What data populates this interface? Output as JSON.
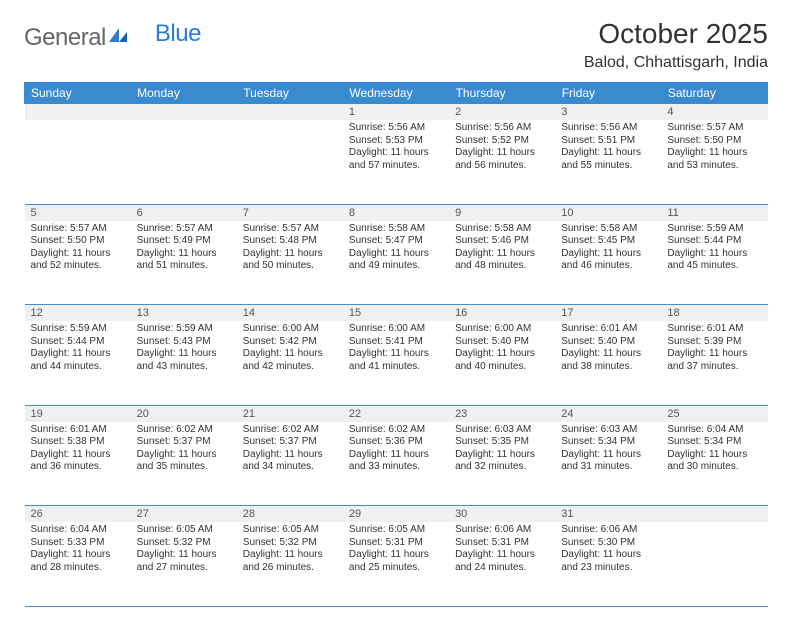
{
  "brand": {
    "name_gray": "General",
    "name_blue": "Blue",
    "logo_color": "#2b7cd3"
  },
  "header": {
    "title": "October 2025",
    "location": "Balod, Chhattisgarh, India"
  },
  "colors": {
    "header_bg": "#3a8ad0",
    "header_text": "#ffffff",
    "daynum_bg": "#eef0f2",
    "rule": "#4a8fc8",
    "text": "#333333"
  },
  "daysOfWeek": [
    "Sunday",
    "Monday",
    "Tuesday",
    "Wednesday",
    "Thursday",
    "Friday",
    "Saturday"
  ],
  "weeks": [
    [
      null,
      null,
      null,
      {
        "n": "1",
        "sr": "Sunrise: 5:56 AM",
        "ss": "Sunset: 5:53 PM",
        "dl": "Daylight: 11 hours and 57 minutes."
      },
      {
        "n": "2",
        "sr": "Sunrise: 5:56 AM",
        "ss": "Sunset: 5:52 PM",
        "dl": "Daylight: 11 hours and 56 minutes."
      },
      {
        "n": "3",
        "sr": "Sunrise: 5:56 AM",
        "ss": "Sunset: 5:51 PM",
        "dl": "Daylight: 11 hours and 55 minutes."
      },
      {
        "n": "4",
        "sr": "Sunrise: 5:57 AM",
        "ss": "Sunset: 5:50 PM",
        "dl": "Daylight: 11 hours and 53 minutes."
      }
    ],
    [
      {
        "n": "5",
        "sr": "Sunrise: 5:57 AM",
        "ss": "Sunset: 5:50 PM",
        "dl": "Daylight: 11 hours and 52 minutes."
      },
      {
        "n": "6",
        "sr": "Sunrise: 5:57 AM",
        "ss": "Sunset: 5:49 PM",
        "dl": "Daylight: 11 hours and 51 minutes."
      },
      {
        "n": "7",
        "sr": "Sunrise: 5:57 AM",
        "ss": "Sunset: 5:48 PM",
        "dl": "Daylight: 11 hours and 50 minutes."
      },
      {
        "n": "8",
        "sr": "Sunrise: 5:58 AM",
        "ss": "Sunset: 5:47 PM",
        "dl": "Daylight: 11 hours and 49 minutes."
      },
      {
        "n": "9",
        "sr": "Sunrise: 5:58 AM",
        "ss": "Sunset: 5:46 PM",
        "dl": "Daylight: 11 hours and 48 minutes."
      },
      {
        "n": "10",
        "sr": "Sunrise: 5:58 AM",
        "ss": "Sunset: 5:45 PM",
        "dl": "Daylight: 11 hours and 46 minutes."
      },
      {
        "n": "11",
        "sr": "Sunrise: 5:59 AM",
        "ss": "Sunset: 5:44 PM",
        "dl": "Daylight: 11 hours and 45 minutes."
      }
    ],
    [
      {
        "n": "12",
        "sr": "Sunrise: 5:59 AM",
        "ss": "Sunset: 5:44 PM",
        "dl": "Daylight: 11 hours and 44 minutes."
      },
      {
        "n": "13",
        "sr": "Sunrise: 5:59 AM",
        "ss": "Sunset: 5:43 PM",
        "dl": "Daylight: 11 hours and 43 minutes."
      },
      {
        "n": "14",
        "sr": "Sunrise: 6:00 AM",
        "ss": "Sunset: 5:42 PM",
        "dl": "Daylight: 11 hours and 42 minutes."
      },
      {
        "n": "15",
        "sr": "Sunrise: 6:00 AM",
        "ss": "Sunset: 5:41 PM",
        "dl": "Daylight: 11 hours and 41 minutes."
      },
      {
        "n": "16",
        "sr": "Sunrise: 6:00 AM",
        "ss": "Sunset: 5:40 PM",
        "dl": "Daylight: 11 hours and 40 minutes."
      },
      {
        "n": "17",
        "sr": "Sunrise: 6:01 AM",
        "ss": "Sunset: 5:40 PM",
        "dl": "Daylight: 11 hours and 38 minutes."
      },
      {
        "n": "18",
        "sr": "Sunrise: 6:01 AM",
        "ss": "Sunset: 5:39 PM",
        "dl": "Daylight: 11 hours and 37 minutes."
      }
    ],
    [
      {
        "n": "19",
        "sr": "Sunrise: 6:01 AM",
        "ss": "Sunset: 5:38 PM",
        "dl": "Daylight: 11 hours and 36 minutes."
      },
      {
        "n": "20",
        "sr": "Sunrise: 6:02 AM",
        "ss": "Sunset: 5:37 PM",
        "dl": "Daylight: 11 hours and 35 minutes."
      },
      {
        "n": "21",
        "sr": "Sunrise: 6:02 AM",
        "ss": "Sunset: 5:37 PM",
        "dl": "Daylight: 11 hours and 34 minutes."
      },
      {
        "n": "22",
        "sr": "Sunrise: 6:02 AM",
        "ss": "Sunset: 5:36 PM",
        "dl": "Daylight: 11 hours and 33 minutes."
      },
      {
        "n": "23",
        "sr": "Sunrise: 6:03 AM",
        "ss": "Sunset: 5:35 PM",
        "dl": "Daylight: 11 hours and 32 minutes."
      },
      {
        "n": "24",
        "sr": "Sunrise: 6:03 AM",
        "ss": "Sunset: 5:34 PM",
        "dl": "Daylight: 11 hours and 31 minutes."
      },
      {
        "n": "25",
        "sr": "Sunrise: 6:04 AM",
        "ss": "Sunset: 5:34 PM",
        "dl": "Daylight: 11 hours and 30 minutes."
      }
    ],
    [
      {
        "n": "26",
        "sr": "Sunrise: 6:04 AM",
        "ss": "Sunset: 5:33 PM",
        "dl": "Daylight: 11 hours and 28 minutes."
      },
      {
        "n": "27",
        "sr": "Sunrise: 6:05 AM",
        "ss": "Sunset: 5:32 PM",
        "dl": "Daylight: 11 hours and 27 minutes."
      },
      {
        "n": "28",
        "sr": "Sunrise: 6:05 AM",
        "ss": "Sunset: 5:32 PM",
        "dl": "Daylight: 11 hours and 26 minutes."
      },
      {
        "n": "29",
        "sr": "Sunrise: 6:05 AM",
        "ss": "Sunset: 5:31 PM",
        "dl": "Daylight: 11 hours and 25 minutes."
      },
      {
        "n": "30",
        "sr": "Sunrise: 6:06 AM",
        "ss": "Sunset: 5:31 PM",
        "dl": "Daylight: 11 hours and 24 minutes."
      },
      {
        "n": "31",
        "sr": "Sunrise: 6:06 AM",
        "ss": "Sunset: 5:30 PM",
        "dl": "Daylight: 11 hours and 23 minutes."
      },
      null
    ]
  ]
}
